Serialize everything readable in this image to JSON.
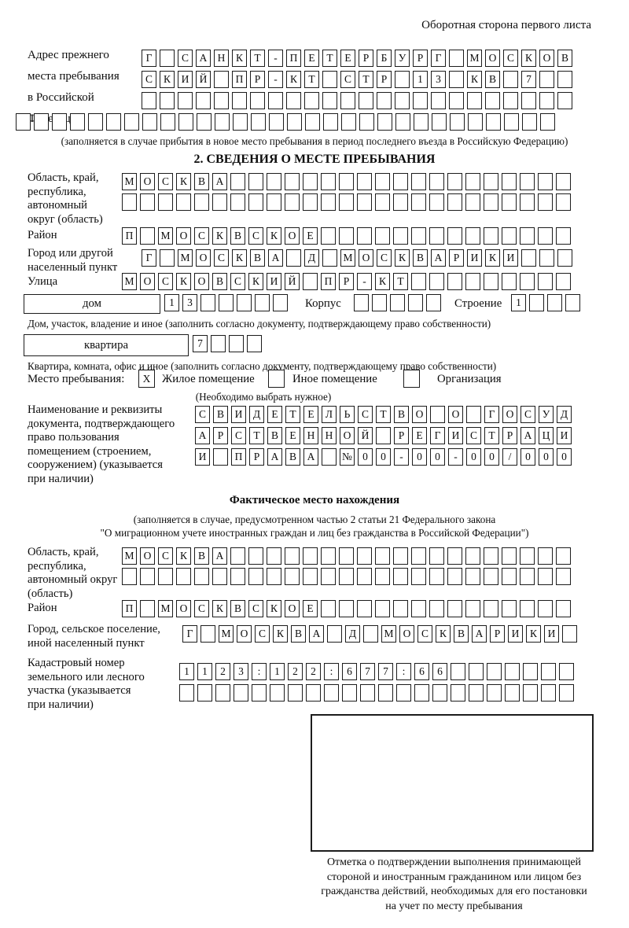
{
  "page": {
    "header_note": "Оборотная сторона первого листа"
  },
  "prev_address": {
    "label_lines": [
      "Адрес прежнего",
      "места пребывания",
      "в Российской",
      "Федерации"
    ],
    "rows": [
      {
        "text": "Г САНКТ-ПЕТЕРБУРГ МОСКОВ",
        "len": 24
      },
      {
        "text": "СКИЙ ПР-КТ СТР 13 КВ 7",
        "len": 24
      },
      {
        "text": "",
        "len": 24
      },
      {
        "text": "",
        "len": 30
      }
    ],
    "caption": "(заполняется в случае прибытия в новое место пребывания в период последнего въезда в Российскую Федерацию)"
  },
  "section2": {
    "title": "2. СВЕДЕНИЯ О МЕСТЕ ПРЕБЫВАНИЯ",
    "region": {
      "label_lines": [
        "Область, край,",
        "республика,",
        "автономный",
        "округ (область)"
      ],
      "rows": [
        {
          "text": "МОСКВА",
          "len": 25
        },
        {
          "text": "",
          "len": 25
        }
      ]
    },
    "district": {
      "label": "Район",
      "row": {
        "text": "П МОСКВСКОЕ",
        "len": 25
      }
    },
    "city": {
      "label_lines": [
        "Город или другой",
        "населенный пункт"
      ],
      "row": {
        "text": "Г МОСКВА Д МОСКВАРИКИ",
        "len": 24
      }
    },
    "street": {
      "label": "Улица",
      "row": {
        "text": "МОСКОВСКИЙ ПР-КТ",
        "len": 25
      }
    },
    "house": {
      "box_label": "дом",
      "row": {
        "text": "13",
        "len": 7
      },
      "korpus_label": "Корпус",
      "korpus_row": {
        "text": "",
        "len": 5
      },
      "stroenie_label": "Строение",
      "stroenie_row": {
        "text": "1",
        "len": 4
      },
      "caption": "Дом, участок, владение и иное (заполнить согласно документу, подтверждающему право собственности)"
    },
    "apartment": {
      "box_label": "квартира",
      "row": {
        "text": "7",
        "len": 4
      },
      "caption": "Квартира, комната, офис и иное (заполнить согласно документу, подтверждающему право собственности)"
    },
    "stay_type": {
      "label": "Место пребывания:",
      "options": [
        {
          "label": "Жилое помещение",
          "checked": "X"
        },
        {
          "label": "Иное помещение",
          "checked": ""
        },
        {
          "label": "Организация",
          "checked": ""
        }
      ],
      "hint": "(Необходимо выбрать нужное)"
    },
    "doc": {
      "label_lines": [
        "Наименование и реквизиты",
        "документа, подтверждающего",
        "право пользования",
        "помещением (строением,",
        "сооружением) (указывается",
        "при наличии)"
      ],
      "rows": [
        {
          "text": "СВИДЕТЕЛЬСТВО О ГОСУД",
          "len": 21
        },
        {
          "text": "АРСТВЕННОЙ РЕГИСТРАЦИ",
          "len": 21
        },
        {
          "text": "И ПРАВА №00-00-00/000",
          "len": 21
        }
      ]
    }
  },
  "actual_location": {
    "title": "Фактическое место нахождения",
    "caption_lines": [
      "(заполняется в случае, предусмотренном частью 2 статьи 21 Федерального закона",
      "\"О миграционном учете иностранных граждан и лиц без гражданства в Российской Федерации\")"
    ],
    "region": {
      "label_lines": [
        "Область, край,",
        "республика,",
        "автономный округ",
        "(область)"
      ],
      "rows": [
        {
          "text": "МОСКВА",
          "len": 25
        },
        {
          "text": "",
          "len": 25
        }
      ]
    },
    "district": {
      "label": "Район",
      "row": {
        "text": "П МОСКВСКОЕ",
        "len": 25
      }
    },
    "settlement": {
      "label_lines": [
        "Город, сельское поселение,",
        "иной населенный пункт"
      ],
      "row": {
        "text": "Г МОСКВА Д МОСКВАРИКИ",
        "len": 22
      }
    },
    "cadastral": {
      "label_lines": [
        "Кадастровый номер",
        "земельного или лесного",
        "участка (указывается",
        "при наличии)"
      ],
      "rows": [
        {
          "text": "1123:122:677:66",
          "len": 22
        },
        {
          "text": "",
          "len": 22
        }
      ]
    },
    "stamp_note_lines": [
      "Отметка о подтверждении выполнения принимающей",
      "стороной и иностранным гражданином или лицом без",
      "гражданства действий, необходимых для его постановки",
      "на учет по месту пребывания"
    ]
  }
}
